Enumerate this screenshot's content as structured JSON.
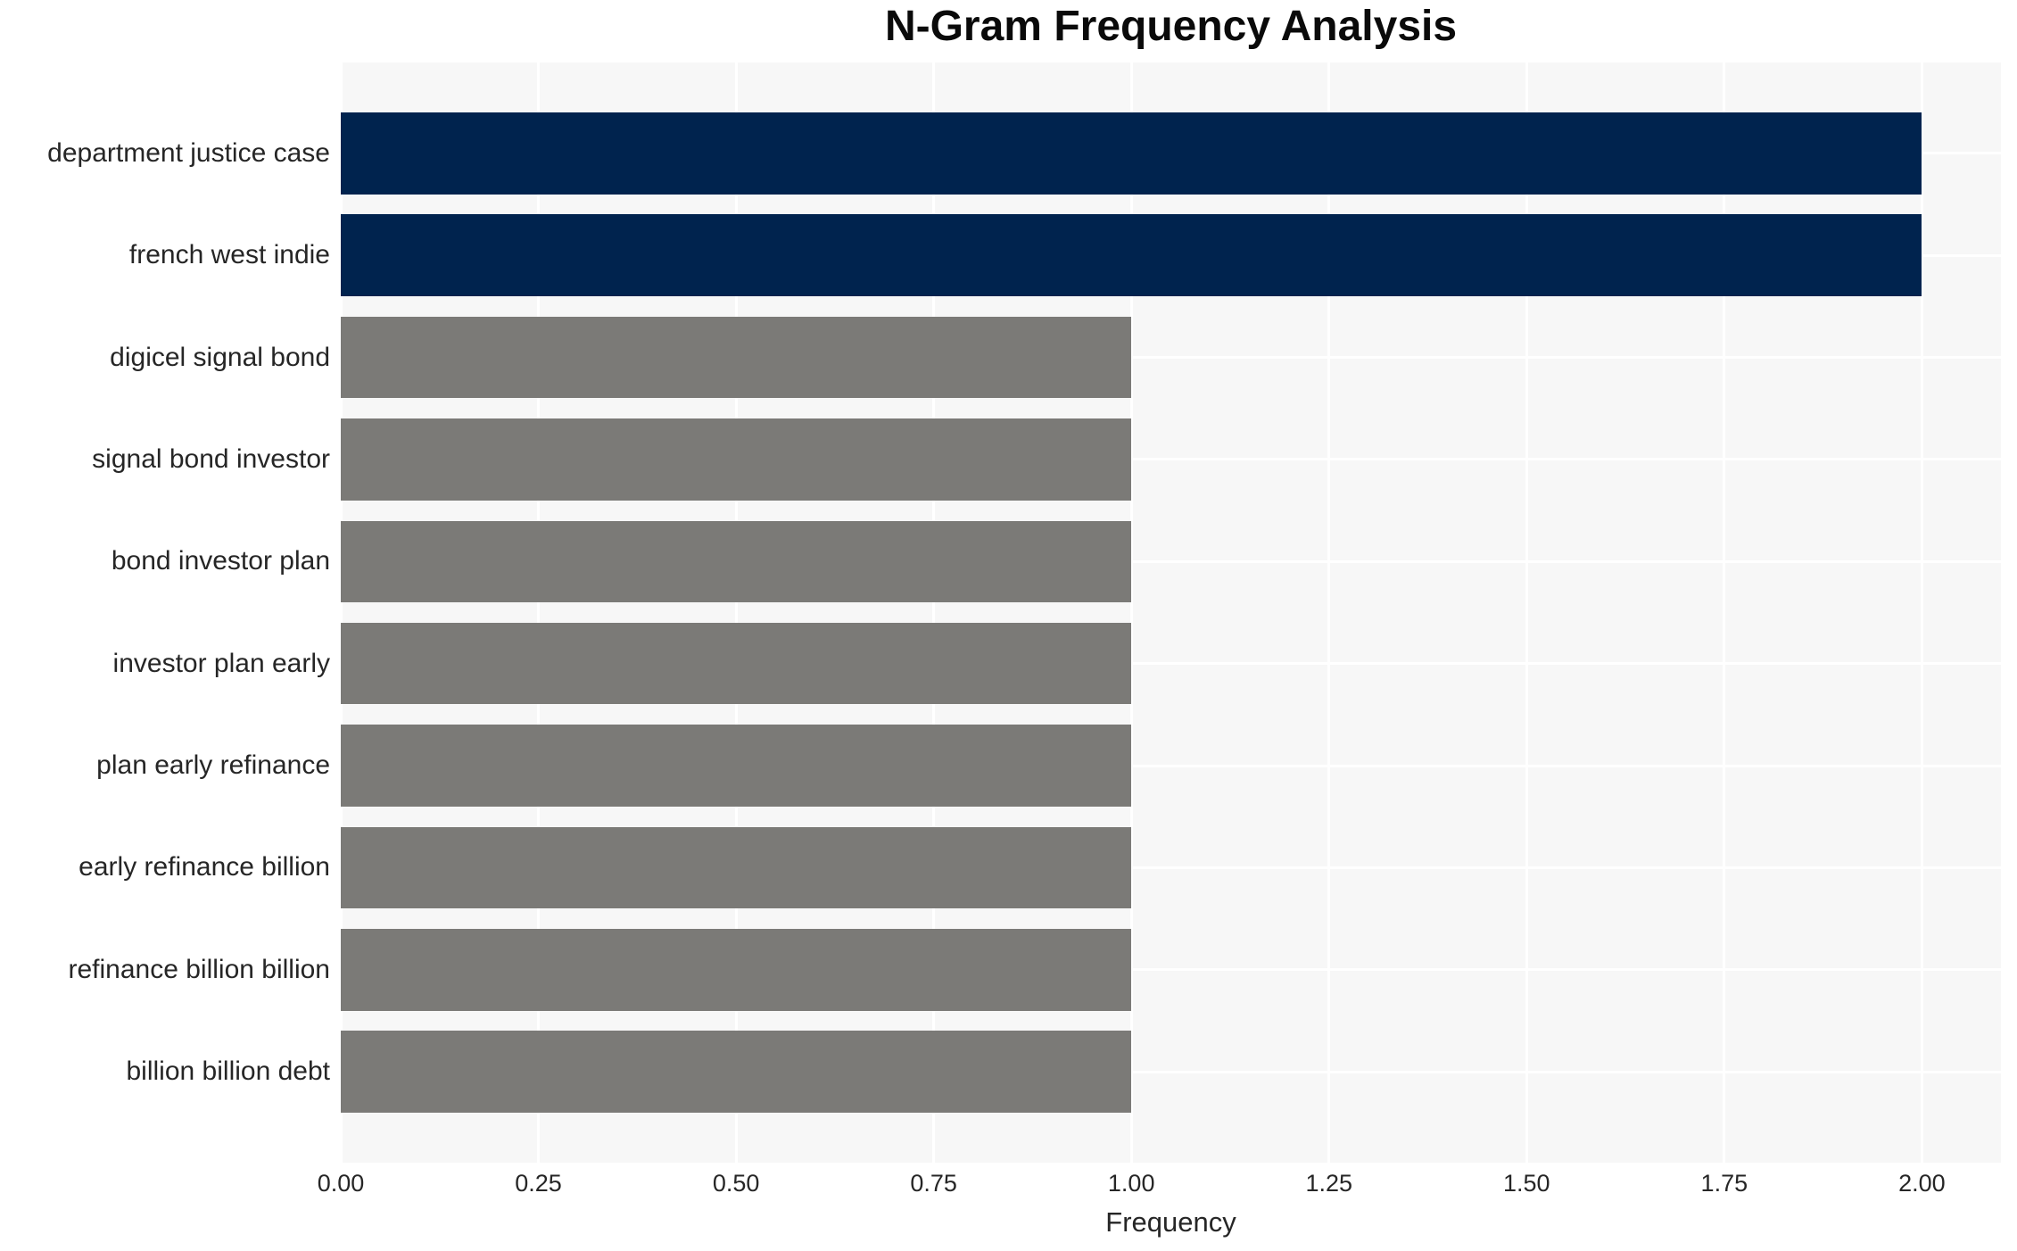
{
  "chart_data": {
    "type": "bar",
    "orientation": "horizontal",
    "title": "N-Gram Frequency Analysis",
    "xlabel": "Frequency",
    "ylabel": "",
    "categories": [
      "department justice case",
      "french west indie",
      "digicel signal bond",
      "signal bond investor",
      "bond investor plan",
      "investor plan early",
      "plan early refinance",
      "early refinance billion",
      "refinance billion billion",
      "billion billion debt"
    ],
    "values": [
      2,
      2,
      1,
      1,
      1,
      1,
      1,
      1,
      1,
      1
    ],
    "bar_colors": [
      "#00234E",
      "#00234E",
      "#7B7A77",
      "#7B7A77",
      "#7B7A77",
      "#7B7A77",
      "#7B7A77",
      "#7B7A77",
      "#7B7A77",
      "#7B7A77"
    ],
    "xlim": [
      0,
      2.1
    ],
    "xticks": [
      0,
      0.25,
      0.5,
      0.75,
      1.0,
      1.25,
      1.5,
      1.75,
      2.0
    ],
    "xtick_labels": [
      "0.00",
      "0.25",
      "0.50",
      "0.75",
      "1.00",
      "1.25",
      "1.50",
      "1.75",
      "2.00"
    ],
    "grid": true,
    "legend": false,
    "colors": {
      "highlight_bar": "#00234E",
      "default_bar": "#7B7A77",
      "plot_background": "#F7F7F7",
      "figure_background": "#FFFFFF",
      "grid_line": "#FFFFFF",
      "text": "#262626"
    }
  }
}
